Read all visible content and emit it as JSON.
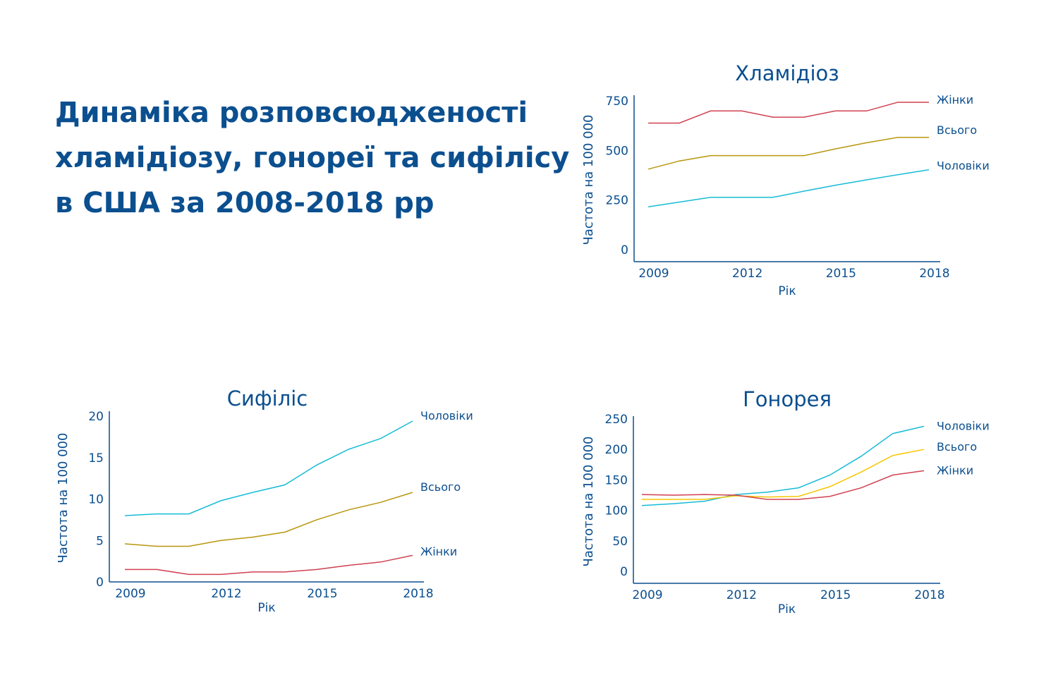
{
  "title_lines": [
    "Динаміка розповсюдженості",
    "хламідіозу, гонореї та сифілісу",
    "в США за 2008-2018 рр"
  ],
  "colors": {
    "text": "#0b4f8f",
    "women": "#d0414f",
    "total": "#b8960c",
    "total_gonorrhea": "#f7c600",
    "men": "#17bcd6"
  },
  "chart_data": [
    {
      "type": "line",
      "title": "Хламідіоз",
      "xlabel": "Рік",
      "ylabel": "Частота на 100 000",
      "x": [
        2009,
        2010,
        2011,
        2012,
        2013,
        2014,
        2015,
        2016,
        2017,
        2018
      ],
      "xticks": [
        "2009",
        "2012",
        "2015",
        "2018"
      ],
      "yticks": [
        "0",
        "250",
        "500",
        "750"
      ],
      "ylim": [
        0,
        750
      ],
      "legend": "right-end labels",
      "series": [
        {
          "name": "Жінки",
          "color": "#d0414f",
          "values": [
            638,
            638,
            699,
            699,
            668,
            668,
            699,
            699,
            743,
            743
          ]
        },
        {
          "name": "Всього",
          "color": "#b8960c",
          "values": [
            406,
            447,
            474,
            474,
            474,
            474,
            508,
            539,
            566,
            566
          ]
        },
        {
          "name": "Чоловіки",
          "color": "#17bcd6",
          "values": [
            216,
            240,
            264,
            264,
            264,
            295,
            325,
            352,
            378,
            403
          ]
        }
      ]
    },
    {
      "type": "line",
      "title": "Сифіліс",
      "xlabel": "Рік",
      "ylabel": "Частота на 100 000",
      "x": [
        2009,
        2010,
        2011,
        2012,
        2013,
        2014,
        2015,
        2016,
        2017,
        2018
      ],
      "xticks": [
        "2009",
        "2012",
        "2015",
        "2018"
      ],
      "yticks": [
        "0",
        "5",
        "10",
        "15",
        "20"
      ],
      "ylim": [
        0,
        20
      ],
      "legend": "right-end labels",
      "series": [
        {
          "name": "Чоловіки",
          "color": "#17bcd6",
          "values": [
            8.0,
            8.2,
            8.2,
            9.8,
            10.8,
            11.7,
            14.1,
            16.0,
            17.3,
            19.4
          ]
        },
        {
          "name": "Всього",
          "color": "#b8960c",
          "values": [
            4.6,
            4.3,
            4.3,
            5.0,
            5.4,
            6.0,
            7.5,
            8.7,
            9.6,
            10.8
          ]
        },
        {
          "name": "Жінки",
          "color": "#d0414f",
          "values": [
            1.5,
            1.5,
            0.9,
            0.9,
            1.2,
            1.2,
            1.5,
            2.0,
            2.4,
            3.2
          ]
        }
      ]
    },
    {
      "type": "line",
      "title": "Гонорея",
      "xlabel": "Рік",
      "ylabel": "Частота на 100 000",
      "x": [
        2009,
        2010,
        2011,
        2012,
        2013,
        2014,
        2015,
        2016,
        2017,
        2018
      ],
      "xticks": [
        "2009",
        "2012",
        "2015",
        "2018"
      ],
      "yticks": [
        "0",
        "50",
        "100",
        "150",
        "200",
        "250"
      ],
      "ylim": [
        0,
        250
      ],
      "legend": "right-end labels",
      "series": [
        {
          "name": "Чоловіки",
          "color": "#17bcd6",
          "values": [
            108,
            111,
            115,
            126,
            130,
            137,
            158,
            189,
            226,
            238
          ]
        },
        {
          "name": "Всього",
          "color": "#f7c600",
          "values": [
            118,
            118,
            118,
            124,
            122,
            123,
            139,
            163,
            190,
            200
          ]
        },
        {
          "name": "Жінки",
          "color": "#d0414f",
          "values": [
            126,
            125,
            126,
            125,
            118,
            118,
            123,
            137,
            158,
            165
          ]
        }
      ]
    }
  ]
}
